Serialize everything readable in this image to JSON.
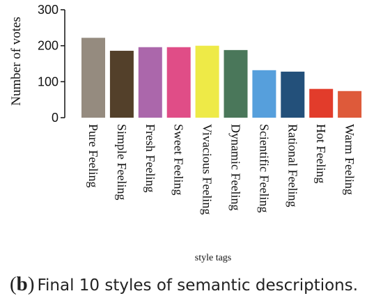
{
  "chart_data": {
    "type": "bar",
    "title": "",
    "xlabel": "style tags",
    "ylabel": "Number of votes",
    "ylim": [
      0,
      300
    ],
    "yticks": [
      0,
      100,
      200,
      300
    ],
    "categories": [
      "Pure Feeling",
      "Simple Feeling",
      "Fresh Feeling",
      "Sweet Feeling",
      "Vivacious Feeling",
      "Dynamic Feeling",
      "Scientific Feeling",
      "Rational Feeling",
      "Hot Feeling",
      "Warm Feeling"
    ],
    "values": [
      222,
      186,
      196,
      196,
      200,
      188,
      132,
      128,
      80,
      74
    ],
    "colors": [
      "#958b7f",
      "#53402a",
      "#ab67ab",
      "#e04d87",
      "#eeea47",
      "#4a775a",
      "#569fdc",
      "#23507a",
      "#e23c2b",
      "#de5a3a"
    ],
    "grid": false
  },
  "caption": {
    "open": "(",
    "letter": "b",
    "close": ")",
    "text": "Final 10 styles of semantic descriptions."
  }
}
